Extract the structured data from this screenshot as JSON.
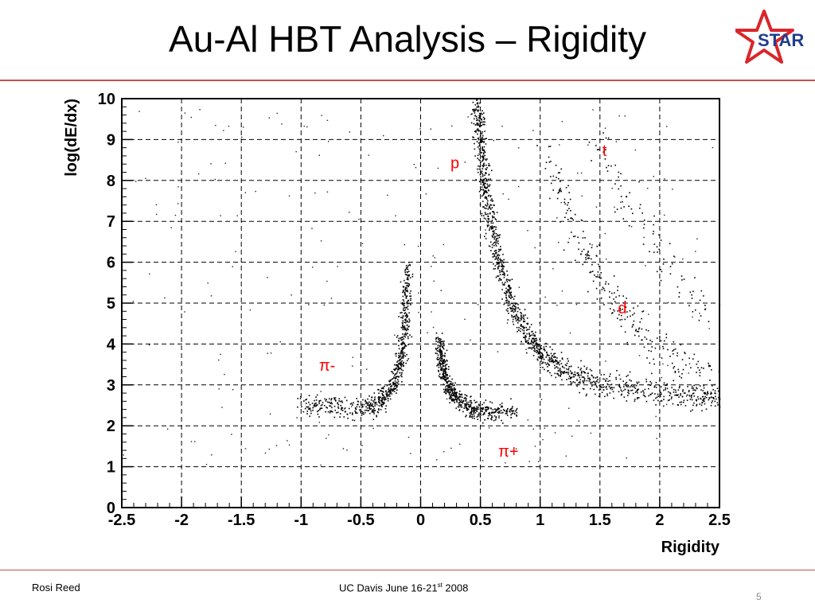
{
  "slide": {
    "title": "Au-Al HBT Analysis – Rigidity",
    "logo_text": "STAR",
    "footer_left": "Rosi Reed",
    "footer_center_prefix": "UC Davis June 16-21",
    "footer_center_sup": "st",
    "footer_center_suffix": " 2008",
    "slide_number": "5",
    "accent_color": "#c0504d",
    "logo_star_color": "#d9262b",
    "logo_text_color": "#1f3d8c"
  },
  "chart_data": {
    "type": "scatter",
    "title": "",
    "xlabel": "Rigidity",
    "ylabel": "log(dE/dx)",
    "xlim": [
      -2.5,
      2.5
    ],
    "ylim": [
      0,
      10
    ],
    "grid": true,
    "x_ticks": [
      "-2.5",
      "-2",
      "-1.5",
      "-1",
      "-0.5",
      "0",
      "0.5",
      "1",
      "1.5",
      "2",
      "2.5"
    ],
    "y_ticks": [
      "0",
      "1",
      "2",
      "3",
      "4",
      "5",
      "6",
      "7",
      "8",
      "9",
      "10"
    ],
    "annotations": [
      {
        "text": "p",
        "x": 0.25,
        "y": 8.3,
        "color": "#ff0000"
      },
      {
        "text": "t",
        "x": 1.52,
        "y": 8.6,
        "color": "#ff0000"
      },
      {
        "text": "d",
        "x": 1.65,
        "y": 4.75,
        "color": "#ff0000"
      },
      {
        "text": "π-",
        "x": -0.85,
        "y": 3.35,
        "color": "#ff0000"
      },
      {
        "text": "π+",
        "x": 0.65,
        "y": 1.25,
        "color": "#ff0000"
      }
    ],
    "series": [
      {
        "name": "π-",
        "points": [
          [
            -1.0,
            2.5
          ],
          [
            -0.8,
            2.5
          ],
          [
            -0.6,
            2.45
          ],
          [
            -0.45,
            2.45
          ],
          [
            -0.35,
            2.6
          ],
          [
            -0.28,
            2.8
          ],
          [
            -0.22,
            3.1
          ],
          [
            -0.18,
            3.5
          ],
          [
            -0.15,
            4.0
          ],
          [
            -0.13,
            4.6
          ],
          [
            -0.12,
            5.3
          ],
          [
            -0.11,
            5.9
          ]
        ]
      },
      {
        "name": "π+",
        "points": [
          [
            0.15,
            4.1
          ],
          [
            0.17,
            3.6
          ],
          [
            0.2,
            3.2
          ],
          [
            0.25,
            2.85
          ],
          [
            0.32,
            2.6
          ],
          [
            0.45,
            2.4
          ],
          [
            0.6,
            2.35
          ],
          [
            0.8,
            2.4
          ]
        ]
      },
      {
        "name": "p",
        "points": [
          [
            0.47,
            10.0
          ],
          [
            0.5,
            9.0
          ],
          [
            0.53,
            8.0
          ],
          [
            0.58,
            7.0
          ],
          [
            0.65,
            6.0
          ],
          [
            0.75,
            5.0
          ],
          [
            0.88,
            4.3
          ],
          [
            1.0,
            3.8
          ],
          [
            1.2,
            3.35
          ],
          [
            1.5,
            3.05
          ],
          [
            1.8,
            2.9
          ],
          [
            2.2,
            2.75
          ],
          [
            2.5,
            2.7
          ]
        ]
      },
      {
        "name": "d",
        "points": [
          [
            1.05,
            8.5
          ],
          [
            1.2,
            7.5
          ],
          [
            1.35,
            6.4
          ],
          [
            1.5,
            5.5
          ],
          [
            1.7,
            4.7
          ],
          [
            1.9,
            4.1
          ],
          [
            2.1,
            3.7
          ],
          [
            2.3,
            3.4
          ],
          [
            2.5,
            3.2
          ]
        ]
      },
      {
        "name": "t",
        "points": [
          [
            1.45,
            9.2
          ],
          [
            1.6,
            8.2
          ],
          [
            1.8,
            7.0
          ],
          [
            2.0,
            6.2
          ],
          [
            2.2,
            5.4
          ],
          [
            2.4,
            4.8
          ]
        ]
      }
    ]
  }
}
